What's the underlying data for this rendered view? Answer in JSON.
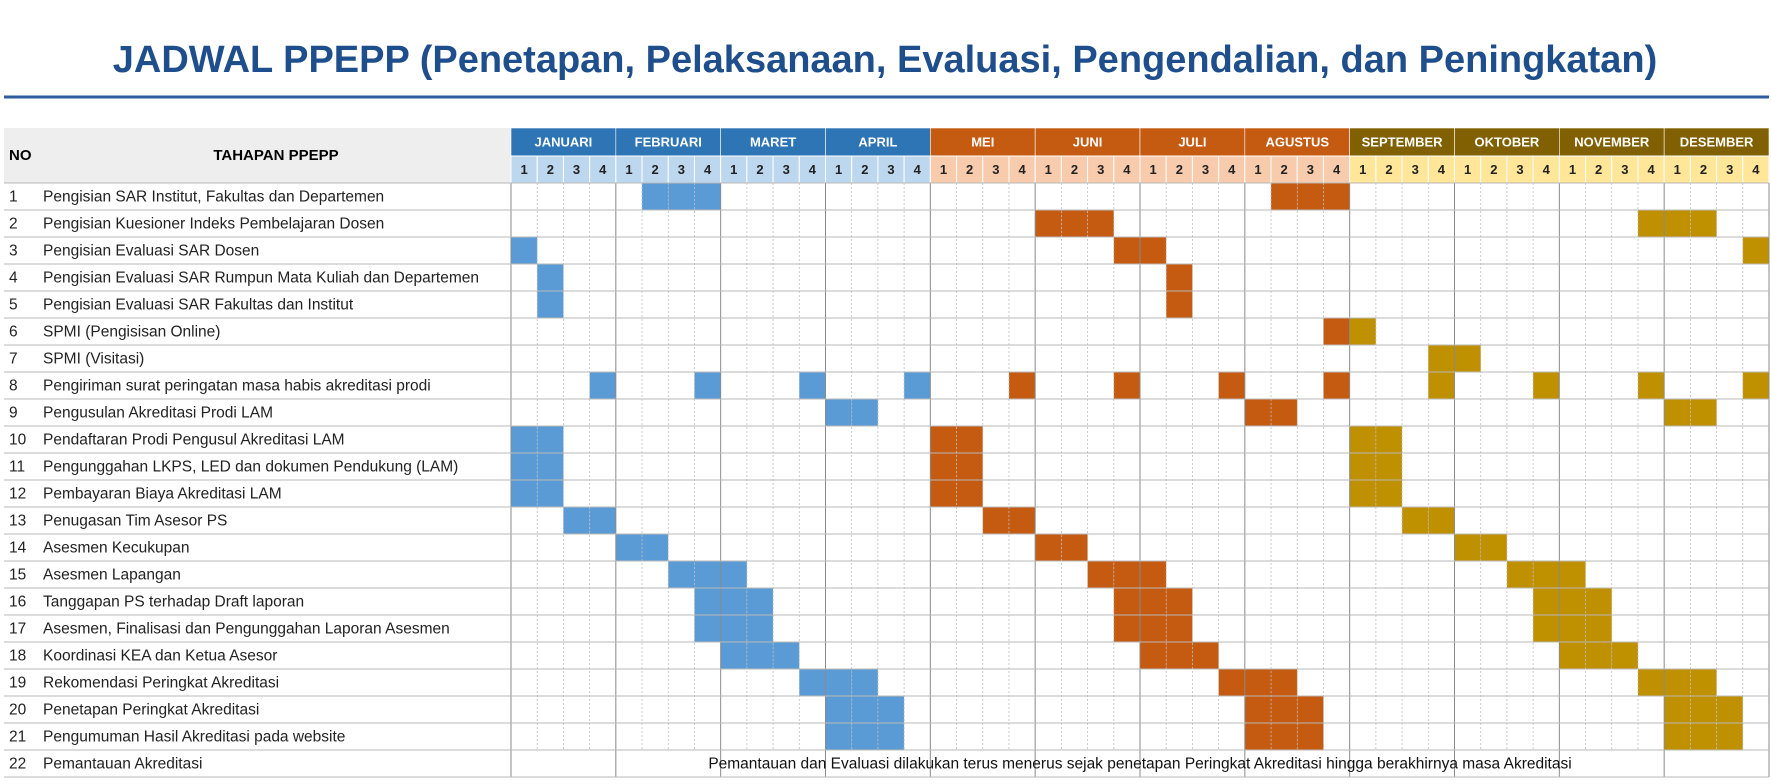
{
  "title": "JADWAL PPEPP (Penetapan, Pelaksanaan, Evaluasi, Pengendalian, dan Peningkatan)",
  "header": {
    "no": "NO",
    "task": "TAHAPAN PPEPP"
  },
  "months": [
    {
      "name": "JANUARI",
      "weeks": [
        1,
        2,
        3,
        4
      ],
      "header_color": "#2e75b6",
      "week_color": "#bdd7ee",
      "fill_color": "#5b9bd5"
    },
    {
      "name": "FEBRUARI",
      "weeks": [
        1,
        2,
        3,
        4
      ],
      "header_color": "#2e75b6",
      "week_color": "#bdd7ee",
      "fill_color": "#5b9bd5"
    },
    {
      "name": "MARET",
      "weeks": [
        1,
        2,
        3,
        4
      ],
      "header_color": "#2e75b6",
      "week_color": "#bdd7ee",
      "fill_color": "#5b9bd5"
    },
    {
      "name": "APRIL",
      "weeks": [
        1,
        2,
        3,
        4
      ],
      "header_color": "#2e75b6",
      "week_color": "#bdd7ee",
      "fill_color": "#5b9bd5"
    },
    {
      "name": "MEI",
      "weeks": [
        1,
        2,
        3,
        4
      ],
      "header_color": "#c55a11",
      "week_color": "#f8cbad",
      "fill_color": "#c55a11"
    },
    {
      "name": "JUNI",
      "weeks": [
        1,
        2,
        3,
        4
      ],
      "header_color": "#c55a11",
      "week_color": "#f8cbad",
      "fill_color": "#c55a11"
    },
    {
      "name": "JULI",
      "weeks": [
        1,
        2,
        3,
        4
      ],
      "header_color": "#c55a11",
      "week_color": "#f8cbad",
      "fill_color": "#c55a11"
    },
    {
      "name": "AGUSTUS",
      "weeks": [
        1,
        2,
        3,
        4
      ],
      "header_color": "#c55a11",
      "week_color": "#f8cbad",
      "fill_color": "#c55a11"
    },
    {
      "name": "SEPTEMBER",
      "weeks": [
        1,
        2,
        3,
        4
      ],
      "header_color": "#806000",
      "week_color": "#ffe699",
      "fill_color": "#bf9000"
    },
    {
      "name": "OKTOBER",
      "weeks": [
        1,
        2,
        3,
        4
      ],
      "header_color": "#806000",
      "week_color": "#ffe699",
      "fill_color": "#bf9000"
    },
    {
      "name": "NOVEMBER",
      "weeks": [
        1,
        2,
        3,
        4
      ],
      "header_color": "#806000",
      "week_color": "#ffe699",
      "fill_color": "#bf9000"
    },
    {
      "name": "DESEMBER",
      "weeks": [
        1,
        2,
        3,
        4
      ],
      "header_color": "#806000",
      "week_color": "#ffe699",
      "fill_color": "#bf9000"
    }
  ],
  "rows": [
    {
      "no": 1,
      "task": "Pengisian SAR Institut, Fakultas dan Departemen",
      "weeks": [
        6,
        7,
        8,
        30,
        31,
        32
      ]
    },
    {
      "no": 2,
      "task": "Pengisian Kuesioner Indeks Pembelajaran Dosen",
      "weeks": [
        21,
        22,
        23,
        44,
        45,
        46
      ]
    },
    {
      "no": 3,
      "task": "Pengisian Evaluasi SAR Dosen",
      "weeks": [
        1,
        24,
        25,
        48
      ]
    },
    {
      "no": 4,
      "task": "Pengisian Evaluasi SAR Rumpun Mata Kuliah dan Departemen",
      "weeks": [
        2,
        26
      ]
    },
    {
      "no": 5,
      "task": "Pengisian Evaluasi SAR Fakultas dan Institut",
      "weeks": [
        2,
        26
      ]
    },
    {
      "no": 6,
      "task": "SPMI (Pengisisan Online)",
      "weeks": [
        32,
        33
      ]
    },
    {
      "no": 7,
      "task": "SPMI (Visitasi)",
      "weeks": [
        36,
        37
      ]
    },
    {
      "no": 8,
      "task": "Pengiriman surat peringatan masa habis akreditasi prodi",
      "weeks": [
        4,
        8,
        12,
        16,
        20,
        24,
        28,
        32,
        36,
        40,
        44,
        48
      ]
    },
    {
      "no": 9,
      "task": "Pengusulan Akreditasi Prodi LAM",
      "weeks": [
        13,
        14,
        29,
        30,
        45,
        46
      ]
    },
    {
      "no": 10,
      "task": "Pendaftaran Prodi Pengusul Akreditasi LAM",
      "weeks": [
        1,
        2,
        17,
        18,
        33,
        34
      ]
    },
    {
      "no": 11,
      "task": "Pengunggahan LKPS, LED dan dokumen Pendukung (LAM)",
      "weeks": [
        1,
        2,
        17,
        18,
        33,
        34
      ]
    },
    {
      "no": 12,
      "task": "Pembayaran Biaya Akreditasi LAM",
      "weeks": [
        1,
        2,
        17,
        18,
        33,
        34
      ]
    },
    {
      "no": 13,
      "task": "Penugasan Tim Asesor PS",
      "weeks": [
        3,
        4,
        19,
        20,
        35,
        36
      ]
    },
    {
      "no": 14,
      "task": "Asesmen Kecukupan",
      "weeks": [
        5,
        6,
        21,
        22,
        37,
        38
      ]
    },
    {
      "no": 15,
      "task": "Asesmen Lapangan",
      "weeks": [
        7,
        8,
        9,
        23,
        24,
        25,
        39,
        40,
        41
      ]
    },
    {
      "no": 16,
      "task": "Tanggapan PS terhadap Draft laporan",
      "weeks": [
        8,
        9,
        10,
        24,
        25,
        26,
        40,
        41,
        42
      ]
    },
    {
      "no": 17,
      "task": "Asesmen, Finalisasi dan Pengunggahan Laporan Asesmen",
      "weeks": [
        8,
        9,
        10,
        24,
        25,
        26,
        40,
        41,
        42
      ]
    },
    {
      "no": 18,
      "task": "Koordinasi KEA dan Ketua Asesor",
      "weeks": [
        9,
        10,
        11,
        25,
        26,
        27,
        41,
        42,
        43
      ]
    },
    {
      "no": 19,
      "task": "Rekomendasi Peringkat Akreditasi",
      "weeks": [
        12,
        13,
        14,
        28,
        29,
        30,
        44,
        45,
        46
      ]
    },
    {
      "no": 20,
      "task": "Penetapan Peringkat Akreditasi",
      "weeks": [
        13,
        14,
        15,
        29,
        30,
        31,
        45,
        46,
        47
      ]
    },
    {
      "no": 21,
      "task": "Pengumuman Hasil Akreditasi pada website",
      "weeks": [
        13,
        14,
        15,
        29,
        30,
        31,
        45,
        46,
        47
      ]
    }
  ],
  "note_row": {
    "no": 22,
    "task": "Pemantauan Akreditasi",
    "note": "Pemantauan dan Evaluasi dilakukan terus menerus sejak penetapan Peringkat Akreditasi hingga berakhirnya masa Akreditasi"
  }
}
